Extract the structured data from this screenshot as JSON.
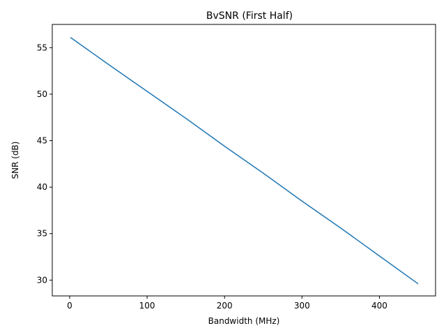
{
  "chart_data": {
    "type": "line",
    "title": "BvSNR (First Half)",
    "xlabel": "Bandwidth (MHz)",
    "ylabel": "SNR (dB)",
    "xlim": [
      -22.5,
      472.5
    ],
    "ylim": [
      28.3,
      57.5
    ],
    "xticks": [
      0,
      100,
      200,
      300,
      400
    ],
    "yticks": [
      30,
      35,
      40,
      45,
      50,
      55
    ],
    "grid": false,
    "series": [
      {
        "x": [
          1,
          50,
          100,
          150,
          200,
          250,
          300,
          350,
          400,
          450
        ],
        "y": [
          56.1,
          53.2,
          50.3,
          47.4,
          44.4,
          41.5,
          38.5,
          35.6,
          32.6,
          29.6
        ],
        "color": "#1f77b4"
      }
    ]
  }
}
